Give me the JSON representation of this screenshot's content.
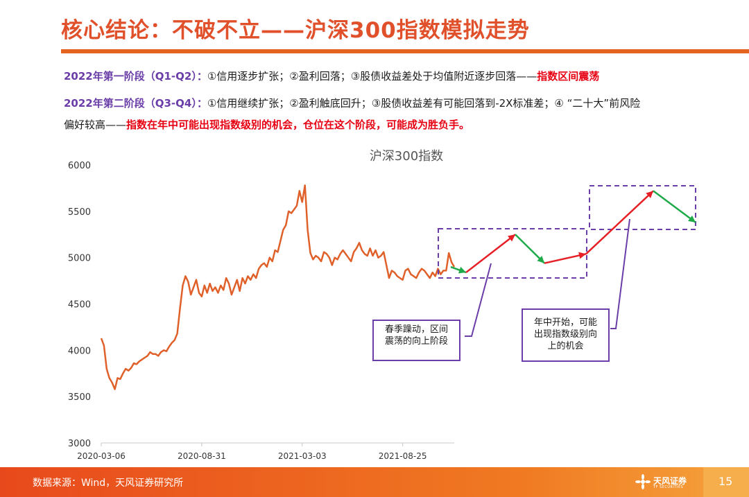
{
  "page": {
    "title": "核心结论：不破不立——沪深300指数模拟走势",
    "page_number": "15",
    "source": "数据来源：Wind，天风证券研究所",
    "logo_text": "天风证券",
    "logo_sub": "TF SECURITIES",
    "colors": {
      "accent": "#e3631f",
      "purple": "#6a3da8",
      "highlight": "#e60012",
      "line": "#e0602a"
    }
  },
  "stages": {
    "s1_label": "2022年第一阶段（Q1-Q2）：",
    "s1_text": "①信用逐步扩张；②盈利回落；③股债收益差处于均值附近逐步回落——",
    "s1_highlight": "指数区间震荡",
    "s2_label": "2022年第二阶段（Q3-Q4）：",
    "s2_text": "①信用继续扩张；②盈利触底回升；③股债收益差有可能回落到-2X标准差；④ “二十大”前风险",
    "s2_text2": "偏好较高——",
    "s2_highlight": "指数在年中可能出现指数级别的机会，仓位在这个阶段，可能成为胜负手。"
  },
  "annotations": {
    "box1_line1": "春季躁动，区间",
    "box1_line2": "震荡的向上阶段",
    "box2_line1": "年中开始，可能",
    "box2_line2": "出现指数级别向",
    "box2_line3": "上的机会"
  },
  "chart_data": {
    "type": "line",
    "title": "沪深300指数",
    "xlabel": "",
    "ylabel": "",
    "ylim": [
      3000,
      6000
    ],
    "yticks": [
      3000,
      3500,
      4000,
      4500,
      5000,
      5500,
      6000
    ],
    "xticks": [
      "2020-03-06",
      "2020-08-31",
      "2021-03-03",
      "2021-08-25"
    ],
    "grid": false,
    "series": [
      {
        "name": "",
        "color": "#e0602a",
        "values": [
          4130,
          4050,
          3800,
          3700,
          3650,
          3580,
          3700,
          3690,
          3750,
          3800,
          3780,
          3810,
          3860,
          3850,
          3880,
          3900,
          3920,
          3940,
          3980,
          3960,
          3960,
          3940,
          3980,
          4000,
          3990,
          4040,
          4080,
          4110,
          4180,
          4450,
          4700,
          4800,
          4740,
          4600,
          4680,
          4760,
          4620,
          4580,
          4700,
          4620,
          4720,
          4640,
          4680,
          4620,
          4700,
          4650,
          4780,
          4720,
          4600,
          4680,
          4760,
          4640,
          4780,
          4720,
          4800,
          4760,
          4820,
          4780,
          4880,
          4920,
          4940,
          4900,
          5000,
          4960,
          5080,
          5060,
          5180,
          5300,
          5350,
          5500,
          5480,
          5520,
          5560,
          5720,
          5600,
          5780,
          5300,
          5050,
          4980,
          5020,
          5000,
          4960,
          5060,
          5040,
          5000,
          4920,
          5000,
          4980,
          5040,
          5080,
          5040,
          5000,
          4960,
          5060,
          5100,
          5160,
          5080,
          5040,
          5020,
          5100,
          5020,
          5080,
          5000,
          5020,
          5060,
          4920,
          4780,
          4860,
          4840,
          4800,
          4780,
          4760,
          4860,
          4880,
          4820,
          4800,
          4780,
          4840,
          4880,
          4860,
          4820,
          4780,
          4840,
          4800,
          4880,
          4820,
          4860,
          4860,
          5050,
          4950,
          4900
        ]
      }
    ],
    "projection": {
      "name": "",
      "values": [
        4900,
        4840,
        5250,
        4940,
        5040,
        5720,
        5380
      ],
      "segment_colors": [
        "#1faa4a",
        "#e61e25",
        "#1faa4a",
        "#e61e25",
        "#e61e25",
        "#1faa4a"
      ]
    }
  }
}
